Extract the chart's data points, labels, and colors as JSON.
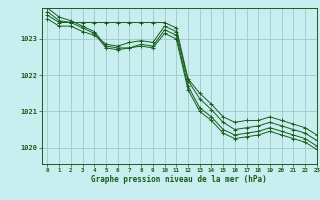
{
  "title": "Graphe pression niveau de la mer (hPa)",
  "background_color": "#c8eef0",
  "grid_color": "#a0c8c8",
  "line_color": "#1a5c1a",
  "xlim": [
    -0.5,
    23
  ],
  "ylim": [
    1019.55,
    1023.85
  ],
  "yticks": [
    1020,
    1021,
    1022,
    1023
  ],
  "xticks": [
    0,
    1,
    2,
    3,
    4,
    5,
    6,
    7,
    8,
    9,
    10,
    11,
    12,
    13,
    14,
    15,
    16,
    17,
    18,
    19,
    20,
    21,
    22,
    23
  ],
  "series": [
    {
      "x": [
        0,
        1,
        2,
        3,
        4,
        5,
        6,
        7,
        8,
        9,
        10,
        11,
        12,
        13,
        14,
        15,
        16,
        17,
        18,
        19,
        20,
        21,
        22,
        23
      ],
      "y": [
        1023.65,
        1023.45,
        1023.45,
        1023.45,
        1023.45,
        1023.45,
        1023.45,
        1023.45,
        1023.45,
        1023.45,
        1023.45,
        1023.3,
        1021.9,
        1021.5,
        1021.2,
        1020.85,
        1020.7,
        1020.75,
        1020.75,
        1020.85,
        1020.75,
        1020.65,
        1020.55,
        1020.35
      ]
    },
    {
      "x": [
        0,
        1,
        2,
        3,
        4,
        5,
        6,
        7,
        8,
        9,
        10,
        11,
        12,
        13,
        14,
        15,
        16,
        17,
        18,
        19,
        20,
        21,
        22,
        23
      ],
      "y": [
        1023.55,
        1023.35,
        1023.35,
        1023.2,
        1023.1,
        1022.85,
        1022.8,
        1022.9,
        1022.95,
        1022.9,
        1023.35,
        1023.2,
        1021.85,
        1021.35,
        1021.05,
        1020.7,
        1020.5,
        1020.55,
        1020.6,
        1020.7,
        1020.6,
        1020.5,
        1020.4,
        1020.2
      ]
    },
    {
      "x": [
        0,
        1,
        2,
        3,
        4,
        5,
        6,
        7,
        8,
        9,
        10,
        11,
        12,
        13,
        14,
        15,
        16,
        17,
        18,
        19,
        20,
        21,
        22,
        23
      ],
      "y": [
        1023.75,
        1023.5,
        1023.45,
        1023.3,
        1023.15,
        1022.75,
        1022.7,
        1022.75,
        1022.85,
        1022.8,
        1023.25,
        1023.1,
        1021.7,
        1021.1,
        1020.85,
        1020.5,
        1020.35,
        1020.4,
        1020.45,
        1020.55,
        1020.45,
        1020.35,
        1020.25,
        1020.05
      ]
    },
    {
      "x": [
        0,
        1,
        2,
        3,
        4,
        5,
        6,
        7,
        8,
        9,
        10,
        11,
        12,
        13,
        14,
        15,
        16,
        17,
        18,
        19,
        20,
        21,
        22,
        23
      ],
      "y": [
        1023.85,
        1023.6,
        1023.5,
        1023.35,
        1023.2,
        1022.8,
        1022.75,
        1022.75,
        1022.8,
        1022.75,
        1023.15,
        1023.0,
        1021.6,
        1021.0,
        1020.75,
        1020.4,
        1020.25,
        1020.3,
        1020.35,
        1020.45,
        1020.35,
        1020.25,
        1020.15,
        1019.95
      ]
    }
  ],
  "figsize": [
    3.2,
    2.0
  ],
  "dpi": 100
}
